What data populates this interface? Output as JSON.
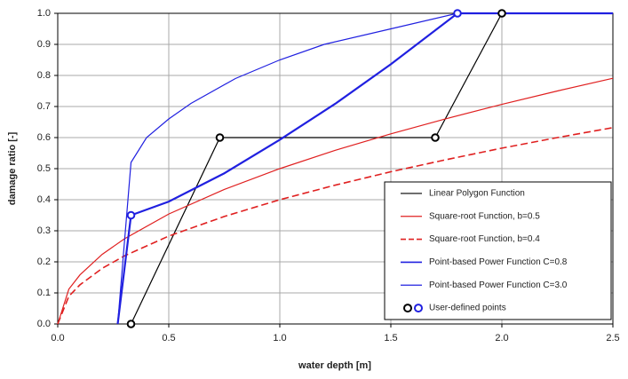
{
  "chart_data": {
    "type": "line",
    "xlabel": "water depth [m]",
    "ylabel": "damage ratio [-]",
    "xlim": [
      0,
      2.5
    ],
    "ylim": [
      0,
      1
    ],
    "xticks": [
      {
        "value": 0,
        "label": "0.0"
      },
      0.5,
      {
        "value": 1,
        "label": "1.0"
      },
      1.5,
      {
        "value": 2,
        "label": "2.0"
      },
      2.5
    ],
    "yticks": [
      {
        "value": 0,
        "label": "0.0"
      },
      0.1,
      0.2,
      0.3,
      0.4,
      0.5,
      0.6,
      0.7,
      0.8,
      0.9,
      {
        "value": 1,
        "label": "1.0"
      }
    ],
    "grid": true,
    "legend": "lower right",
    "series": [
      {
        "name": "Linear Polygon Function",
        "color": "#000000",
        "line_style": "solid",
        "linewidth": 1.2,
        "x": [
          0.33,
          0.73,
          1.7,
          2.0,
          2.5
        ],
        "values": [
          0,
          0.6,
          0.6,
          1.0,
          1.0
        ]
      },
      {
        "name": "Square-root Function, b=0.5",
        "color": "#e02020",
        "line_style": "solid",
        "linewidth": 1.2,
        "x": [
          0,
          0.05,
          0.1,
          0.2,
          0.3,
          0.5,
          0.75,
          1,
          1.25,
          1.5,
          1.75,
          2,
          2.25,
          2.5
        ],
        "values": [
          0,
          0.112,
          0.158,
          0.224,
          0.274,
          0.354,
          0.433,
          0.5,
          0.559,
          0.612,
          0.661,
          0.707,
          0.75,
          0.791
        ]
      },
      {
        "name": "Square-root Function, b=0.4",
        "color": "#e02020",
        "line_style": "dashed",
        "linewidth": 1.6,
        "x": [
          0,
          0.05,
          0.1,
          0.2,
          0.3,
          0.5,
          0.75,
          1,
          1.25,
          1.5,
          1.75,
          2,
          2.25,
          2.5
        ],
        "values": [
          0,
          0.089,
          0.126,
          0.179,
          0.219,
          0.283,
          0.346,
          0.4,
          0.447,
          0.49,
          0.529,
          0.566,
          0.6,
          0.632
        ]
      },
      {
        "name": "Point-based Power Function C=0.8",
        "color": "#2020e0",
        "line_style": "solid",
        "linewidth": 2.2,
        "x": [
          0.27,
          0.33,
          0.5,
          0.75,
          1.0,
          1.25,
          1.5,
          1.8,
          2.5
        ],
        "values": [
          0,
          0.35,
          0.394,
          0.485,
          0.593,
          0.709,
          0.836,
          1.0,
          1.0
        ]
      },
      {
        "name": "Point-based Power Function C=3.0",
        "color": "#2020e0",
        "line_style": "solid",
        "linewidth": 1.2,
        "x": [
          0.27,
          0.33,
          0.4,
          0.5,
          0.6,
          0.8,
          1.0,
          1.2,
          1.5,
          1.8,
          2.5
        ],
        "values": [
          0,
          0.52,
          0.6,
          0.66,
          0.71,
          0.79,
          0.85,
          0.9,
          0.95,
          1.0,
          1.0
        ]
      },
      {
        "name": "User-defined points",
        "type": "points",
        "colors": [
          "#000000",
          "#000000",
          "#000000",
          "#000000",
          "#2020e0",
          "#2020e0"
        ],
        "x": [
          0.33,
          0.73,
          1.7,
          2.0,
          0.33,
          1.8
        ],
        "values": [
          0,
          0.6,
          0.6,
          1.0,
          0.35,
          1.0
        ]
      }
    ]
  }
}
